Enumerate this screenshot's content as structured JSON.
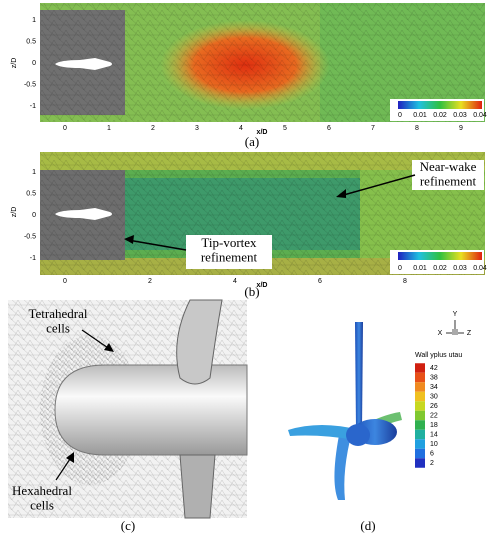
{
  "panel_a": {
    "y_label": "z/D",
    "y_ticks": [
      "1",
      "0.5",
      "0",
      "-0.5",
      "-1"
    ],
    "x_ticks": [
      "0",
      "1",
      "2",
      "3",
      "4",
      "5",
      "6",
      "7",
      "8",
      "9"
    ],
    "x_label": "x/D",
    "colorbar_ticks": [
      "0",
      "0.01",
      "0.02",
      "0.03",
      "0.04"
    ],
    "caption": "(a)"
  },
  "panel_b": {
    "y_label": "z/D",
    "y_ticks": [
      "1",
      "0.5",
      "0",
      "-0.5",
      "-1"
    ],
    "x_ticks": [
      "0",
      "2",
      "4",
      "6",
      "8"
    ],
    "x_label": "x/D",
    "colorbar_ticks": [
      "0",
      "0.01",
      "0.02",
      "0.03",
      "0.04"
    ],
    "annotations": [
      "Near-wake\nrefinement",
      "Tip-vortex\nrefinement"
    ],
    "caption": "(b)"
  },
  "panel_c": {
    "labels": [
      "Tetrahedral\ncells",
      "Hexahedral\ncells"
    ],
    "caption": "(c)"
  },
  "panel_d": {
    "triad": [
      "Y",
      "X",
      "Z"
    ],
    "legend_title": "Wall yplus utau",
    "legend_ticks": [
      "42",
      "38",
      "34",
      "30",
      "26",
      "22",
      "18",
      "14",
      "10",
      "6",
      "2"
    ],
    "caption": "(d)"
  }
}
